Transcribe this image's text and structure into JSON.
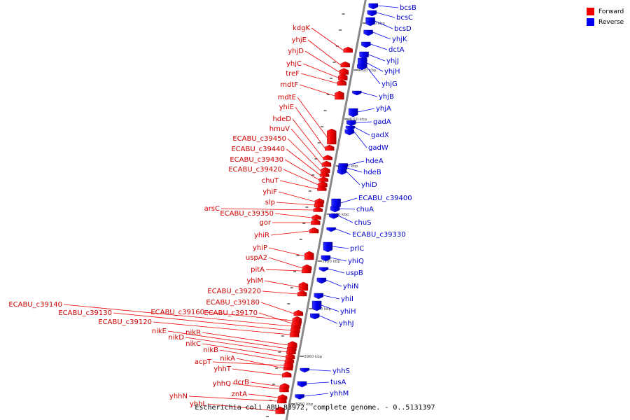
{
  "title": "Escherichia coli ABU 83972, complete genome. - 0..5131397",
  "legend": {
    "forward": {
      "label": "Forward",
      "color": "#ee0000"
    },
    "reverse": {
      "label": "Reverse",
      "color": "#0000ee"
    }
  },
  "colors": {
    "forward_line": "#ee0000",
    "reverse_line": "#0000ee",
    "backbone": "#888888"
  },
  "kbp_ticks": [
    "4030 kbp",
    "4020 kbp",
    "4010 kbp",
    "4000 kbp",
    "3990 kbp",
    "3980 kbp",
    "3970 kbp",
    "3960 kbp",
    "3950 kbp"
  ],
  "forward_genes": [
    "kdgK",
    "yhjE",
    "yhjD",
    "yhjC",
    "treF",
    "mdtF",
    "mdtE",
    "yhiE",
    "hdeD",
    "hmuV",
    "ECABU_c39450",
    "ECABU_c39440",
    "ECABU_c39430",
    "ECABU_c39420",
    "chuT",
    "yhiF",
    "slp",
    "arsC",
    "ECABU_c39350",
    "gor",
    "yhiR",
    "yhiP",
    "uspA2",
    "pitA",
    "yhiM",
    "ECABU_c39220",
    "ECABU_c39180",
    "ECABU_c39140",
    "ECABU_c39130",
    "ECABU_c39160",
    "ECABU_c39170",
    "ECABU_c39120",
    "nikE",
    "nikR",
    "nikD",
    "nikC",
    "nikB",
    "nikA",
    "acpT",
    "yhhT",
    "yhhQ",
    "dcrB",
    "zntA",
    "yhhN",
    "yhhL"
  ],
  "reverse_genes": [
    "bcsB",
    "bcsC",
    "bcsD",
    "yhjK",
    "dctA",
    "yhjJ",
    "yhjH",
    "yhjG",
    "yhjB",
    "yhjA",
    "gadA",
    "gadX",
    "gadW",
    "hdeA",
    "hdeB",
    "yhiD",
    "ECABU_c39400",
    "chuA",
    "chuS",
    "ECABU_c39330",
    "prlC",
    "yhiQ",
    "uspB",
    "yhiN",
    "yhiI",
    "yhiH",
    "yhhJ",
    "yhhS",
    "tusA",
    "yhhM"
  ]
}
